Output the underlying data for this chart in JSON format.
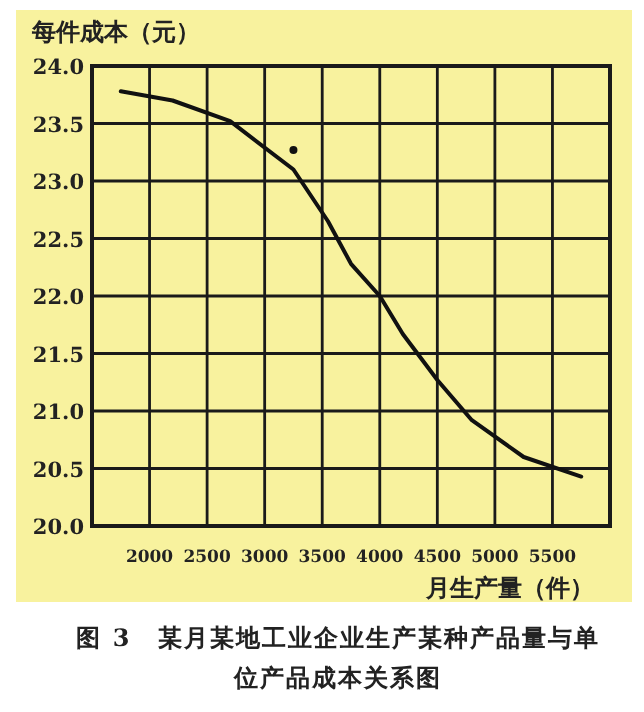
{
  "chart_data": {
    "type": "line",
    "title": "图 3　某月某地工业企业生产某种产品量与单位产品成本关系图",
    "xlabel": "月生产量（件）",
    "ylabel": "每件成本（元）",
    "xlim": [
      1500,
      6000
    ],
    "xticks": [
      2000,
      2500,
      3000,
      3500,
      4000,
      4500,
      5000,
      5500
    ],
    "ylim": [
      20,
      24
    ],
    "yticks": [
      {
        "value": 20,
        "label": "20.0"
      },
      20.5,
      {
        "value": 21,
        "label": "21.0"
      },
      21.5,
      {
        "value": 22,
        "label": "22.0"
      },
      22.5,
      {
        "value": 23,
        "label": "23.0"
      },
      23.5,
      {
        "value": 24,
        "label": "24.0"
      }
    ],
    "grid": true,
    "series": [
      {
        "color": "#111111",
        "marker": "none",
        "x": [
          1750,
          2200,
          2700,
          3250,
          3550,
          3750,
          4000,
          4200,
          4500,
          4800,
          5250,
          5750
        ],
        "values": [
          23.78,
          23.7,
          23.52,
          23.1,
          22.65,
          22.28,
          22.0,
          21.67,
          21.27,
          20.92,
          20.6,
          20.43
        ]
      },
      {
        "type": "scatter",
        "color": "#111111",
        "marker": "circle",
        "x": [
          3250
        ],
        "values": [
          23.27
        ]
      }
    ]
  }
}
